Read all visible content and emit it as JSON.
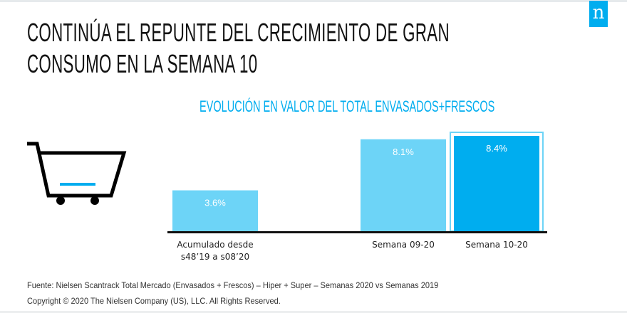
{
  "header": {
    "title_lines": [
      "CONTINÚA EL REPUNTE DEL CRECIMIENTO DE GRAN",
      "CONSUMO EN LA SEMANA 10"
    ],
    "logo_letter": "n",
    "brand_color": "#00adef"
  },
  "icons": {
    "cart": "shopping-cart-icon"
  },
  "chart_data": {
    "type": "bar",
    "title": "EVOLUCIÓN EN VALOR DEL TOTAL ENVASADOS+FRESCOS",
    "xlabel": "",
    "ylabel": "",
    "categories": [
      "Acumulado desde s48'19 a s08'20",
      "Semana 09-20",
      "Semana 10-20"
    ],
    "category_lines": [
      [
        "Acumulado desde",
        "s48’19 a s08’20"
      ],
      [
        "Semana 09-20"
      ],
      [
        "Semana 10-20"
      ]
    ],
    "values": [
      3.6,
      8.1,
      8.4
    ],
    "data_labels": [
      "3.6%",
      "8.1%",
      "8.4%"
    ],
    "unit": "%",
    "ylim": [
      0,
      8.4
    ],
    "grid": false,
    "highlighted_index": 2,
    "colors": {
      "normal": "#6dd4f7",
      "highlight": "#00adef",
      "axis": "#111111"
    }
  },
  "footer": {
    "source": "Fuente: Nielsen Scantrack Total Mercado (Envasados + Frescos) – Hiper + Super – Semanas 2020 vs Semanas 2019",
    "copyright": "Copyright © 2020 The Nielsen Company (US), LLC. All Rights Reserved."
  }
}
